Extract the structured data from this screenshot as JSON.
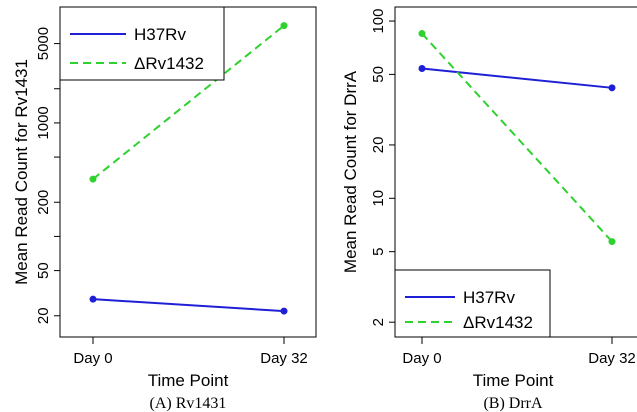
{
  "chart_data": [
    {
      "type": "line",
      "caption": "(A) Rv1431",
      "xlabel": "Time Point",
      "ylabel": "Mean Read Count for Rv1431",
      "categories": [
        "Day 0",
        "Day 32"
      ],
      "y_scale": "log",
      "ylim": [
        13,
        10500
      ],
      "y_ticks": [
        20,
        50,
        100,
        200,
        500,
        1000,
        2000,
        5000
      ],
      "y_tick_labels": [
        "20",
        "50",
        "",
        "200",
        "",
        "1000",
        "",
        "5000"
      ],
      "legend_position": "top-left",
      "series": [
        {
          "name": "H37Rv",
          "values": [
            28,
            22
          ],
          "color": "#1f1fd6",
          "dash": "solid"
        },
        {
          "name": "ΔRv1432",
          "values": [
            320,
            7200
          ],
          "color": "#2fd12f",
          "dash": "dashed"
        }
      ]
    },
    {
      "type": "line",
      "caption": "(B) DrrA",
      "xlabel": "Time Point",
      "ylabel": "Mean Read Count for DrrA",
      "categories": [
        "Day 0",
        "Day 32"
      ],
      "y_scale": "log",
      "ylim": [
        1.65,
        120
      ],
      "y_ticks": [
        2,
        5,
        10,
        20,
        50,
        100
      ],
      "y_tick_labels": [
        "2",
        "5",
        "10",
        "20",
        "50",
        "100"
      ],
      "legend_position": "bottom-left",
      "series": [
        {
          "name": "H37Rv",
          "values": [
            54,
            42
          ],
          "color": "#1f1fd6",
          "dash": "solid"
        },
        {
          "name": "ΔRv1432",
          "values": [
            85,
            5.7
          ],
          "color": "#2fd12f",
          "dash": "dashed"
        }
      ]
    }
  ]
}
